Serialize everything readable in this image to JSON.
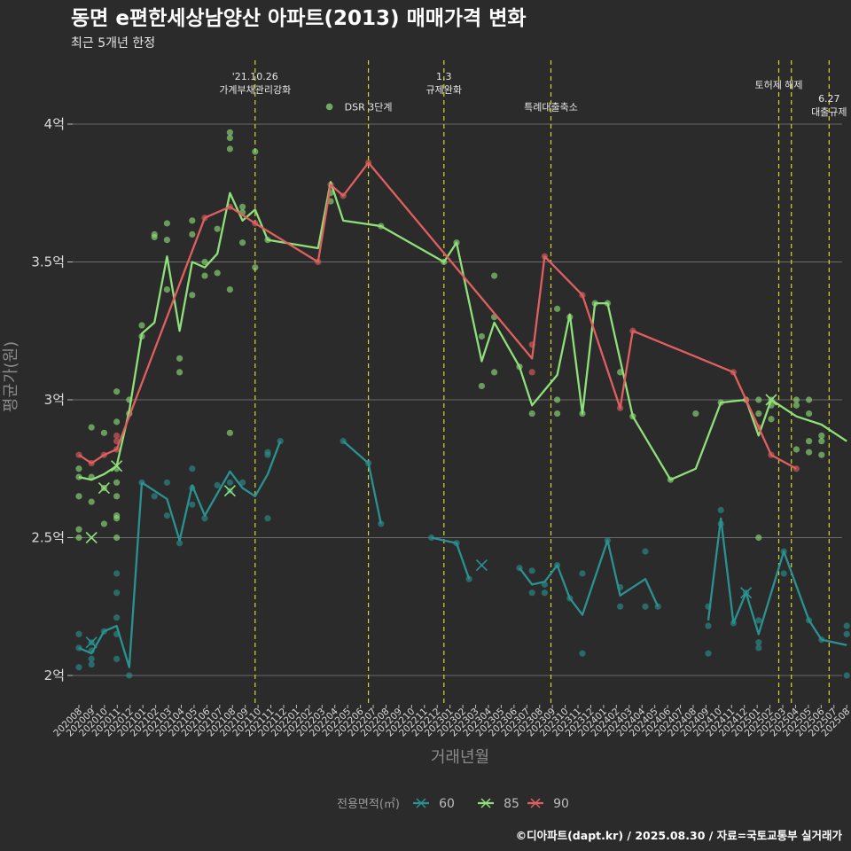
{
  "chart_data": {
    "type": "line",
    "title": "동면 e편한세상남양산 아파트(2013) 매매가격 변화",
    "subtitle": "최근 5개년 한정",
    "xlabel": "거래년월",
    "ylabel": "평균가(원)",
    "caption": "©디아파트(dapt.kr) / 2025.08.30 / 자료=국토교통부 실거래가",
    "legend_title": "전용면적(㎡)",
    "legend_position": "bottom",
    "grid": true,
    "ylim": [
      1.9,
      4.35
    ],
    "y_ticks": [
      {
        "value": 2,
        "label": "2억"
      },
      {
        "value": 2.5,
        "label": "2.5억"
      },
      {
        "value": 3,
        "label": "3억"
      },
      {
        "value": 3.5,
        "label": "3.5억"
      },
      {
        "value": 4,
        "label": "4억"
      }
    ],
    "x_labels": [
      "202008",
      "202009",
      "202010",
      "202011",
      "202012",
      "202101",
      "202102",
      "202103",
      "202104",
      "202105",
      "202106",
      "202107",
      "202108",
      "202109",
      "202110",
      "202111",
      "202112",
      "202201",
      "202202",
      "202203",
      "202204",
      "202205",
      "202206",
      "202207",
      "202208",
      "202209",
      "202210",
      "202211",
      "202212",
      "202301",
      "202302",
      "202303",
      "202304",
      "202305",
      "202306",
      "202307",
      "202308",
      "202309",
      "202310",
      "202311",
      "202312",
      "202401",
      "202402",
      "202403",
      "202404",
      "202405",
      "202406",
      "202407",
      "202408",
      "202409",
      "202410",
      "202411",
      "202412",
      "202501",
      "202502",
      "202503",
      "202504",
      "202505",
      "202506",
      "202507",
      "202508"
    ],
    "events": [
      {
        "x": 14,
        "label": "'21.10.26\n가계부채관리강화",
        "y": 4.16
      },
      {
        "x": 23,
        "label": "DSR 3단계",
        "y": 4.05,
        "marker": true
      },
      {
        "x": 29,
        "label": "1.3\n규제완화",
        "y": 4.16
      },
      {
        "x": 37.5,
        "label": "특례대출축소",
        "y": 4.05
      },
      {
        "x": 55.6,
        "label": "토허제 해제",
        "y": 4.13
      },
      {
        "x": 56.6,
        "label": ""
      },
      {
        "x": 59.6,
        "label": "6.27\n대출규제",
        "y": 4.08
      }
    ],
    "series": [
      {
        "name": "60",
        "color": "#2a9290",
        "line": [
          [
            0,
            2.1
          ],
          [
            1,
            2.08
          ],
          [
            2,
            2.16
          ],
          [
            3,
            2.18
          ],
          [
            4,
            2.03
          ],
          [
            5,
            2.7
          ],
          [
            7,
            2.64
          ],
          [
            8,
            2.49
          ],
          [
            9,
            2.69
          ],
          [
            10,
            2.58
          ],
          [
            12,
            2.74
          ],
          [
            13,
            2.68
          ],
          [
            14,
            2.65
          ],
          [
            15,
            2.73
          ],
          [
            16,
            2.85
          ],
          null,
          [
            21,
            2.85
          ],
          [
            23,
            2.77
          ],
          [
            24,
            2.55
          ],
          null,
          [
            28,
            2.5
          ],
          [
            30,
            2.48
          ],
          [
            31,
            2.35
          ],
          null,
          [
            35,
            2.39
          ],
          [
            36,
            2.33
          ],
          [
            37,
            2.34
          ],
          [
            38,
            2.4
          ],
          [
            39,
            2.28
          ],
          [
            40,
            2.22
          ],
          [
            42,
            2.49
          ],
          [
            43,
            2.29
          ],
          [
            45,
            2.35
          ],
          [
            46,
            2.25
          ],
          null,
          [
            50,
            2.2
          ],
          [
            51,
            2.57
          ],
          [
            52,
            2.19
          ],
          [
            53,
            2.3
          ],
          [
            54,
            2.15
          ],
          [
            56,
            2.45
          ],
          [
            58,
            2.2
          ],
          [
            59,
            2.13
          ],
          [
            61,
            2.11
          ]
        ],
        "points": [
          [
            0,
            2.03
          ],
          [
            0,
            2.1
          ],
          [
            0,
            2.15
          ],
          [
            1,
            2.04
          ],
          [
            1,
            2.06
          ],
          [
            1,
            2.09
          ],
          [
            1,
            2.12
          ],
          [
            2,
            2.16
          ],
          [
            3,
            2.06
          ],
          [
            3,
            2.15
          ],
          [
            3,
            2.21
          ],
          [
            3,
            2.3
          ],
          [
            3,
            2.37
          ],
          [
            4,
            2.0
          ],
          [
            5,
            2.7
          ],
          [
            6,
            2.65
          ],
          [
            7,
            2.58
          ],
          [
            7,
            2.7
          ],
          [
            8,
            2.48
          ],
          [
            9,
            2.62
          ],
          [
            9,
            2.68
          ],
          [
            9,
            2.75
          ],
          [
            10,
            2.57
          ],
          [
            11,
            2.69
          ],
          [
            12,
            2.67
          ],
          [
            12,
            2.7
          ],
          [
            13,
            2.7
          ],
          [
            15,
            2.57
          ],
          [
            15,
            2.8
          ],
          [
            15,
            2.81
          ],
          [
            16,
            2.85
          ],
          [
            21,
            2.85
          ],
          [
            23,
            2.77
          ],
          [
            24,
            2.55
          ],
          [
            28,
            2.5
          ],
          [
            30,
            2.48
          ],
          [
            31,
            2.35
          ],
          [
            35,
            2.39
          ],
          [
            36,
            2.3
          ],
          [
            36,
            2.38
          ],
          [
            37,
            2.33
          ],
          [
            37,
            2.3
          ],
          [
            38,
            2.4
          ],
          [
            39,
            2.28
          ],
          [
            40,
            2.08
          ],
          [
            40,
            2.37
          ],
          [
            42,
            2.49
          ],
          [
            43,
            2.25
          ],
          [
            43,
            2.32
          ],
          [
            45,
            2.45
          ],
          [
            45,
            2.25
          ],
          [
            46,
            2.25
          ],
          [
            50,
            2.08
          ],
          [
            50,
            2.18
          ],
          [
            50,
            2.25
          ],
          [
            51,
            2.6
          ],
          [
            51,
            2.55
          ],
          [
            52,
            2.19
          ],
          [
            53,
            2.3
          ],
          [
            54,
            2.2
          ],
          [
            54,
            2.12
          ],
          [
            54,
            2.1
          ],
          [
            56,
            2.45
          ],
          [
            56,
            2.37
          ],
          [
            58,
            2.2
          ],
          [
            59,
            2.13
          ],
          [
            61,
            2.0
          ],
          [
            61,
            2.15
          ],
          [
            61,
            2.18
          ]
        ],
        "crosses": [
          [
            1,
            2.12
          ],
          [
            32,
            2.4
          ],
          [
            53,
            2.3
          ]
        ]
      },
      {
        "name": "85",
        "color": "#8fe07a",
        "line": [
          [
            0,
            2.72
          ],
          [
            1,
            2.71
          ],
          [
            2,
            2.73
          ],
          [
            3,
            2.76
          ],
          [
            4,
            2.96
          ],
          [
            5,
            3.24
          ],
          [
            6,
            3.28
          ],
          [
            7,
            3.52
          ],
          [
            8,
            3.25
          ],
          [
            9,
            3.5
          ],
          [
            10,
            3.48
          ],
          [
            11,
            3.53
          ],
          [
            12,
            3.75
          ],
          [
            13,
            3.65
          ],
          [
            14,
            3.69
          ],
          [
            15,
            3.58
          ],
          [
            19,
            3.55
          ],
          [
            20,
            3.79
          ],
          [
            21,
            3.65
          ],
          [
            24,
            3.63
          ],
          [
            29,
            3.5
          ],
          [
            30,
            3.57
          ],
          [
            32,
            3.14
          ],
          [
            33,
            3.28
          ],
          [
            35,
            3.12
          ],
          [
            36,
            2.98
          ],
          [
            38,
            3.09
          ],
          [
            39,
            3.31
          ],
          [
            40,
            2.95
          ],
          [
            41,
            3.35
          ],
          [
            42,
            3.35
          ],
          [
            44,
            2.94
          ],
          [
            47,
            2.71
          ],
          [
            49,
            2.75
          ],
          [
            51,
            2.99
          ],
          [
            53,
            3.0
          ],
          [
            54,
            2.87
          ],
          [
            55,
            3.0
          ],
          [
            57,
            2.94
          ],
          [
            59,
            2.91
          ],
          [
            61,
            2.85
          ]
        ],
        "points": [
          [
            0,
            2.5
          ],
          [
            0,
            2.53
          ],
          [
            0,
            2.65
          ],
          [
            0,
            2.72
          ],
          [
            0,
            2.75
          ],
          [
            1,
            2.63
          ],
          [
            1,
            2.72
          ],
          [
            1,
            2.9
          ],
          [
            2,
            2.55
          ],
          [
            2,
            2.68
          ],
          [
            2,
            2.88
          ],
          [
            3,
            2.5
          ],
          [
            3,
            2.57
          ],
          [
            3,
            2.58
          ],
          [
            3,
            2.65
          ],
          [
            3,
            2.7
          ],
          [
            3,
            2.75
          ],
          [
            3,
            2.92
          ],
          [
            3,
            3.03
          ],
          [
            4,
            2.95
          ],
          [
            4,
            3.0
          ],
          [
            5,
            3.23
          ],
          [
            5,
            3.27
          ],
          [
            6,
            3.6
          ],
          [
            6,
            3.59
          ],
          [
            7,
            3.4
          ],
          [
            7,
            3.58
          ],
          [
            7,
            3.64
          ],
          [
            8,
            3.1
          ],
          [
            8,
            3.15
          ],
          [
            9,
            3.38
          ],
          [
            9,
            3.6
          ],
          [
            9,
            3.65
          ],
          [
            10,
            3.45
          ],
          [
            10,
            3.5
          ],
          [
            11,
            3.46
          ],
          [
            11,
            3.62
          ],
          [
            12,
            2.88
          ],
          [
            12,
            3.4
          ],
          [
            12,
            3.91
          ],
          [
            12,
            3.95
          ],
          [
            12,
            3.97
          ],
          [
            13,
            3.57
          ],
          [
            13,
            3.68
          ],
          [
            13,
            3.7
          ],
          [
            14,
            3.48
          ],
          [
            14,
            3.9
          ],
          [
            15,
            3.58
          ],
          [
            20,
            3.72
          ],
          [
            20,
            3.75
          ],
          [
            24,
            3.63
          ],
          [
            29,
            3.5
          ],
          [
            30,
            3.57
          ],
          [
            32,
            3.05
          ],
          [
            32,
            3.23
          ],
          [
            33,
            3.1
          ],
          [
            33,
            3.3
          ],
          [
            33,
            3.45
          ],
          [
            35,
            3.12
          ],
          [
            36,
            2.95
          ],
          [
            38,
            2.95
          ],
          [
            38,
            3.0
          ],
          [
            38,
            3.33
          ],
          [
            39,
            3.3
          ],
          [
            40,
            2.95
          ],
          [
            41,
            3.35
          ],
          [
            42,
            3.35
          ],
          [
            43,
            3.1
          ],
          [
            44,
            2.94
          ],
          [
            47,
            2.71
          ],
          [
            49,
            2.95
          ],
          [
            51,
            2.99
          ],
          [
            53,
            3.0
          ],
          [
            54,
            2.5
          ],
          [
            54,
            2.95
          ],
          [
            54,
            3.0
          ],
          [
            55,
            2.93
          ],
          [
            55,
            2.98
          ],
          [
            55,
            3.0
          ],
          [
            57,
            2.82
          ],
          [
            57,
            2.98
          ],
          [
            57,
            3.0
          ],
          [
            58,
            2.95
          ],
          [
            58,
            2.81
          ],
          [
            58,
            2.85
          ],
          [
            58,
            3.0
          ],
          [
            59,
            2.8
          ],
          [
            59,
            2.87
          ],
          [
            59,
            2.85
          ]
        ],
        "crosses": [
          [
            1,
            2.5
          ],
          [
            2,
            2.68
          ],
          [
            3,
            2.76
          ],
          [
            12,
            2.67
          ],
          [
            55,
            3.0
          ]
        ]
      },
      {
        "name": "90",
        "color": "#e05f5f",
        "line": [
          [
            0,
            2.8
          ],
          [
            1,
            2.77
          ],
          [
            2,
            2.8
          ],
          [
            3,
            2.82
          ],
          [
            10,
            3.66
          ],
          [
            12,
            3.7
          ],
          [
            14,
            3.64
          ],
          [
            19,
            3.5
          ],
          [
            20,
            3.78
          ],
          [
            21,
            3.74
          ],
          [
            23,
            3.86
          ],
          [
            36,
            3.15
          ],
          [
            37,
            3.52
          ],
          [
            40,
            3.38
          ],
          [
            43,
            2.97
          ],
          [
            44,
            3.25
          ],
          [
            52,
            3.1
          ],
          [
            53,
            3.0
          ],
          [
            54,
            2.9
          ],
          [
            55,
            2.8
          ],
          [
            57,
            2.75
          ]
        ],
        "points": [
          [
            0,
            2.8
          ],
          [
            1,
            2.77
          ],
          [
            2,
            2.8
          ],
          [
            3,
            2.82
          ],
          [
            3,
            2.85
          ],
          [
            3,
            2.87
          ],
          [
            10,
            3.66
          ],
          [
            12,
            3.7
          ],
          [
            14,
            3.64
          ],
          [
            19,
            3.5
          ],
          [
            20,
            3.78
          ],
          [
            21,
            3.74
          ],
          [
            23,
            3.86
          ],
          [
            36,
            3.1
          ],
          [
            36,
            3.2
          ],
          [
            37,
            3.52
          ],
          [
            40,
            3.38
          ],
          [
            43,
            2.97
          ],
          [
            44,
            3.25
          ],
          [
            52,
            3.1
          ],
          [
            53,
            3.0
          ],
          [
            54,
            2.9
          ],
          [
            55,
            2.8
          ],
          [
            57,
            2.75
          ]
        ],
        "crosses": []
      }
    ]
  }
}
